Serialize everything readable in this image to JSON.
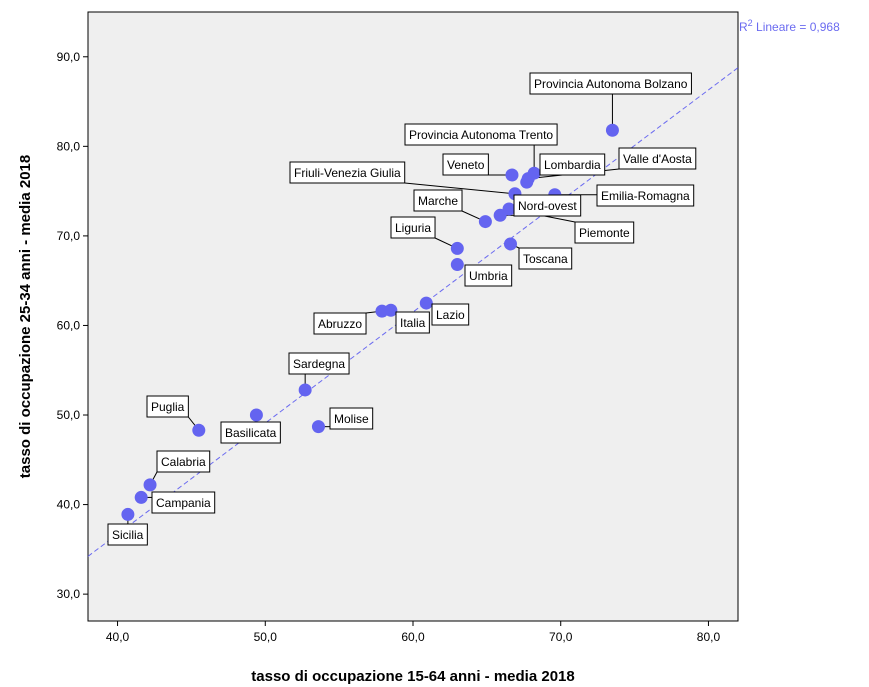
{
  "chart_data": {
    "type": "scatter",
    "title": "",
    "xlabel": "tasso di occupazione 15-64 anni - media 2018",
    "ylabel": "tasso di occupazione 25-34 anni - media 2018",
    "xlim": [
      38.0,
      82.0
    ],
    "ylim": [
      27.0,
      95.0
    ],
    "xticks": [
      "40,0",
      "50,0",
      "60,0",
      "70,0",
      "80,0"
    ],
    "yticks": [
      "30,0",
      "40,0",
      "50,0",
      "60,0",
      "70,0",
      "80,0",
      "90,0"
    ],
    "grid": false,
    "fit_line": {
      "label": "R² Lineare = 0,968",
      "label_base": "R",
      "label_sup": "2",
      "label_rest": " Lineare = 0,968",
      "slope": 1.24,
      "intercept": -12.9
    },
    "colors": {
      "point": "#6464f0",
      "fit_line": "#6b6bf0",
      "plot_bg": "#efefef"
    },
    "points": [
      {
        "name": "Provincia Autonoma Bolzano",
        "x": 73.5,
        "y": 81.8
      },
      {
        "name": "Provincia Autonoma Trento",
        "x": 68.2,
        "y": 77.0
      },
      {
        "name": "Veneto",
        "x": 66.7,
        "y": 76.8
      },
      {
        "name": "Lombardia",
        "x": 67.7,
        "y": 76.0
      },
      {
        "name": "Valle d'Aosta",
        "x": 67.8,
        "y": 76.4
      },
      {
        "name": "Friuli-Venezia Giulia",
        "x": 66.9,
        "y": 74.7
      },
      {
        "name": "Emilia-Romagna",
        "x": 69.6,
        "y": 74.6
      },
      {
        "name": "Marche",
        "x": 64.9,
        "y": 71.6
      },
      {
        "name": "Nord-ovest",
        "x": 65.9,
        "y": 72.3
      },
      {
        "name": "Piemonte",
        "x": 66.5,
        "y": 73.0
      },
      {
        "name": "Liguria",
        "x": 63.0,
        "y": 68.6
      },
      {
        "name": "Toscana",
        "x": 66.6,
        "y": 69.1
      },
      {
        "name": "Umbria",
        "x": 63.0,
        "y": 66.8
      },
      {
        "name": "Lazio",
        "x": 60.9,
        "y": 62.5
      },
      {
        "name": "Italia",
        "x": 58.5,
        "y": 61.7
      },
      {
        "name": "Abruzzo",
        "x": 57.9,
        "y": 61.6
      },
      {
        "name": "Sardegna",
        "x": 52.7,
        "y": 52.8
      },
      {
        "name": "Molise",
        "x": 53.6,
        "y": 48.7
      },
      {
        "name": "Basilicata",
        "x": 49.4,
        "y": 50.0
      },
      {
        "name": "Puglia",
        "x": 45.5,
        "y": 48.3
      },
      {
        "name": "Calabria",
        "x": 42.2,
        "y": 42.2
      },
      {
        "name": "Campania",
        "x": 41.6,
        "y": 40.8
      },
      {
        "name": "Sicilia",
        "x": 40.7,
        "y": 38.9
      }
    ]
  }
}
